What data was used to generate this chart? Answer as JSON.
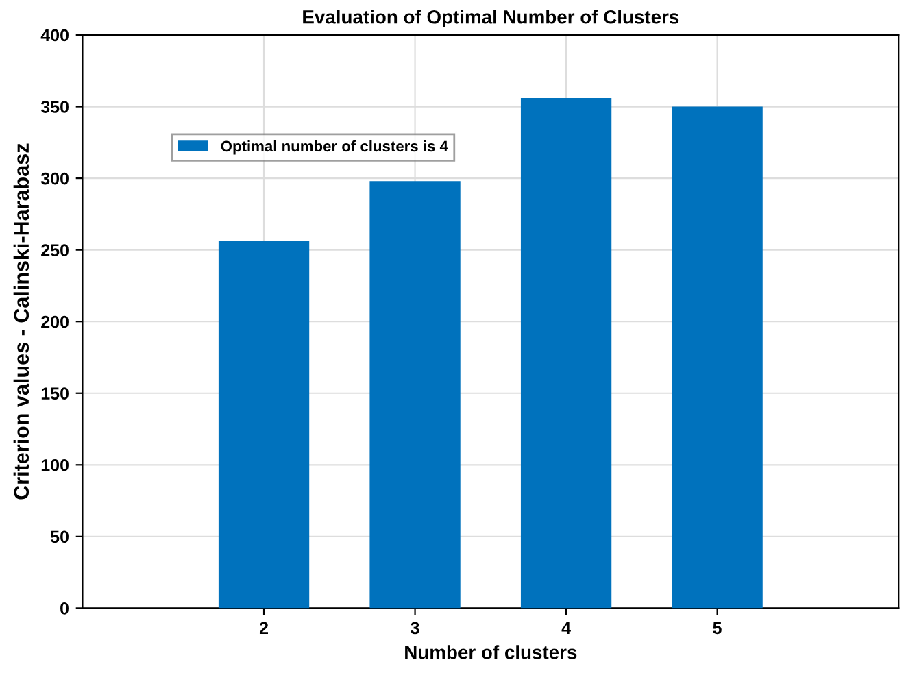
{
  "chart_data": {
    "type": "bar",
    "title": "Evaluation of Optimal Number of Clusters",
    "xlabel": "Number of clusters",
    "ylabel": "Criterion values - Calinski-Harabasz",
    "x": [
      2,
      3,
      4,
      5
    ],
    "series": [
      {
        "name": "Optimal number of clusters is 4",
        "color": "#0072bd",
        "values": [
          256,
          298,
          356,
          350
        ]
      }
    ],
    "xlim": [
      0.8,
      6.2
    ],
    "xticks": [
      2,
      3,
      4,
      5
    ],
    "ylim": [
      0,
      400
    ],
    "yticks": [
      0,
      50,
      100,
      150,
      200,
      250,
      300,
      350,
      400
    ],
    "grid": true,
    "legend": "top left"
  }
}
